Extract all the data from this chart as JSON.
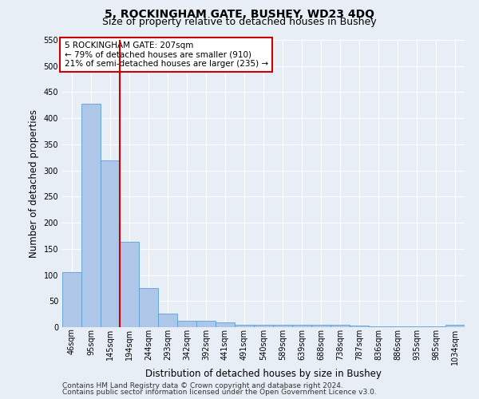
{
  "title": "5, ROCKINGHAM GATE, BUSHEY, WD23 4DQ",
  "subtitle": "Size of property relative to detached houses in Bushey",
  "xlabel": "Distribution of detached houses by size in Bushey",
  "ylabel": "Number of detached properties",
  "categories": [
    "46sqm",
    "95sqm",
    "145sqm",
    "194sqm",
    "244sqm",
    "293sqm",
    "342sqm",
    "392sqm",
    "441sqm",
    "491sqm",
    "540sqm",
    "589sqm",
    "639sqm",
    "688sqm",
    "738sqm",
    "787sqm",
    "836sqm",
    "886sqm",
    "935sqm",
    "985sqm",
    "1034sqm"
  ],
  "values": [
    105,
    428,
    320,
    163,
    75,
    26,
    12,
    12,
    9,
    5,
    5,
    5,
    4,
    4,
    4,
    3,
    2,
    2,
    2,
    2,
    4
  ],
  "bar_color": "#aec6e8",
  "bar_edge_color": "#5a9fd4",
  "ylim": [
    0,
    550
  ],
  "yticks": [
    0,
    50,
    100,
    150,
    200,
    250,
    300,
    350,
    400,
    450,
    500,
    550
  ],
  "property_line_x": 2.5,
  "annotation_title": "5 ROCKINGHAM GATE: 207sqm",
  "annotation_line1": "← 79% of detached houses are smaller (910)",
  "annotation_line2": "21% of semi-detached houses are larger (235) →",
  "annotation_box_color": "#cc0000",
  "footer_line1": "Contains HM Land Registry data © Crown copyright and database right 2024.",
  "footer_line2": "Contains public sector information licensed under the Open Government Licence v3.0.",
  "background_color": "#e8eef6",
  "plot_bg_color": "#e8eef6",
  "grid_color": "#ffffff",
  "title_fontsize": 10,
  "subtitle_fontsize": 9,
  "xlabel_fontsize": 8.5,
  "ylabel_fontsize": 8.5,
  "footer_fontsize": 6.5,
  "tick_fontsize": 7,
  "annot_fontsize": 7.5
}
